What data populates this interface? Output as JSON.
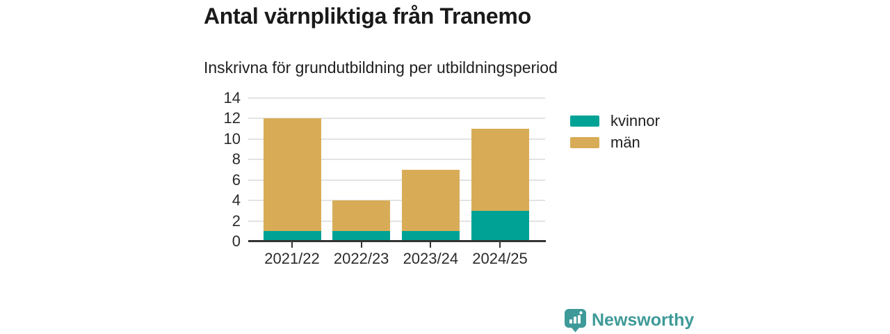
{
  "header": {
    "title": "Antal värnpliktiga från Tranemo",
    "subtitle": "Inskrivna för grundutbildning per utbildningsperiod"
  },
  "chart_data": {
    "type": "bar",
    "stacked": true,
    "title": "Antal värnpliktiga från Tranemo",
    "subtitle": "Inskrivna för grundutbildning per utbildningsperiod",
    "categories": [
      "2021/22",
      "2022/23",
      "2023/24",
      "2024/25"
    ],
    "series": [
      {
        "name": "kvinnor",
        "color": "#00a296",
        "values": [
          1,
          1,
          1,
          3
        ]
      },
      {
        "name": "män",
        "color": "#d8ac57",
        "values": [
          11,
          3,
          6,
          8
        ]
      }
    ],
    "totals": [
      12,
      4,
      7,
      11
    ],
    "xlabel": "",
    "ylabel": "",
    "ylim": [
      0,
      14
    ],
    "yticks": [
      0,
      2,
      4,
      6,
      8,
      10,
      12,
      14
    ],
    "grid": true,
    "legend_position": "right",
    "colors": {
      "grid": "#e3e3e3",
      "axis": "#333333",
      "tick_text": "#2b2b2b"
    }
  },
  "footer": {
    "brand": "Newsworthy",
    "brand_color": "#3e9a98",
    "icon": "newsworthy-pin-barchart-icon"
  }
}
